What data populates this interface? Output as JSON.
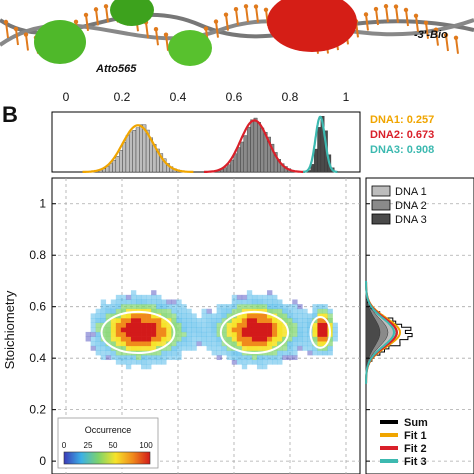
{
  "header": {
    "left_label": "Atto565",
    "right_label": "-3'-Bio"
  },
  "panel_letter": "B",
  "chart_data": {
    "type": "heatmap",
    "top_histogram": {
      "x_ticks": [
        "0",
        "0.2",
        "0.4",
        "0.6",
        "0.8",
        "1"
      ],
      "xlim": [
        0,
        1
      ],
      "peaks": [
        {
          "name": "DNA1",
          "value": "0.257",
          "color": "#f0a500",
          "center": 0.257,
          "sigma": 0.055,
          "height": 0.78
        },
        {
          "name": "DNA2",
          "value": "0.673",
          "color": "#d9202a",
          "center": 0.673,
          "sigma": 0.05,
          "height": 0.86
        },
        {
          "name": "DNA3",
          "value": "0.908",
          "color": "#3cb9b0",
          "center": 0.908,
          "sigma": 0.017,
          "height": 0.92
        }
      ]
    },
    "main": {
      "ylabel": "Stoichiometry",
      "y_ticks": [
        "0",
        "0.2",
        "0.4",
        "0.6",
        "0.8",
        "1"
      ],
      "xlim": [
        -0.05,
        1.05
      ],
      "ylim": [
        -0.05,
        1.1
      ],
      "grid": true,
      "clusters": [
        {
          "cx": 0.257,
          "cy": 0.5,
          "rx": 0.13,
          "ry": 0.08
        },
        {
          "cx": 0.673,
          "cy": 0.5,
          "rx": 0.12,
          "ry": 0.08
        },
        {
          "cx": 0.908,
          "cy": 0.5,
          "rx": 0.035,
          "ry": 0.06
        }
      ]
    },
    "colorbar": {
      "title": "Occurrence",
      "ticks": [
        "0",
        "25",
        "50",
        "100"
      ],
      "colors": [
        "#3a3ab8",
        "#3cb0e6",
        "#7dd36b",
        "#f6e32a",
        "#f08a1c",
        "#d31a1a"
      ]
    },
    "side_histogram": {
      "legend_top": [
        {
          "label": "DNA 1",
          "color": "#bdbdbd"
        },
        {
          "label": "DNA 2",
          "color": "#8a8a8a"
        },
        {
          "label": "DNA 3",
          "color": "#4a4a4a"
        }
      ],
      "legend_bottom": [
        {
          "label": "Sum",
          "color": "#000000"
        },
        {
          "label": "Fit 1",
          "color": "#f0a500"
        },
        {
          "label": "Fit 2",
          "color": "#d9202a"
        },
        {
          "label": "Fit 3",
          "color": "#3cb9b0"
        }
      ]
    }
  }
}
